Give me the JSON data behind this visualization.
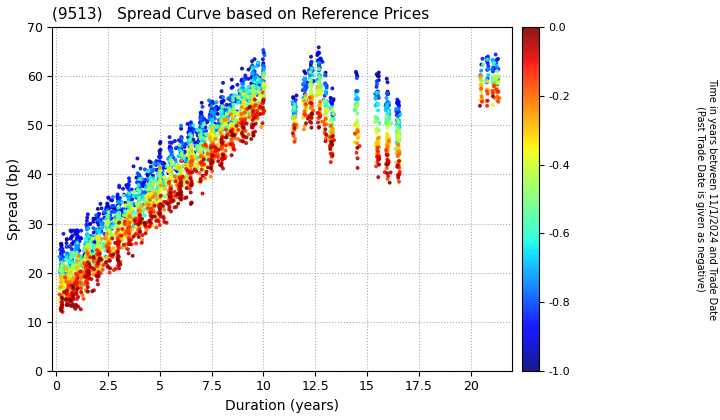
{
  "title": "(9513)   Spread Curve based on Reference Prices",
  "xlabel": "Duration (years)",
  "ylabel": "Spread (bp)",
  "xlim": [
    -0.2,
    22
  ],
  "ylim": [
    0,
    70
  ],
  "xticks": [
    0.0,
    2.5,
    5.0,
    7.5,
    10.0,
    12.5,
    15.0,
    17.5,
    20.0
  ],
  "yticks": [
    0,
    10,
    20,
    30,
    40,
    50,
    60,
    70
  ],
  "colorbar_label": "Time in years between 11/1/2024 and Trade Date\n(Past Trade Date is given as negative)",
  "clim": [
    -1.0,
    0.0
  ],
  "cbar_ticks": [
    0.0,
    -0.2,
    -0.4,
    -0.6,
    -0.8,
    -1.0
  ],
  "marker_size": 8,
  "background_color": "#ffffff",
  "grid_color": "#aaaaaa",
  "seed": 42
}
